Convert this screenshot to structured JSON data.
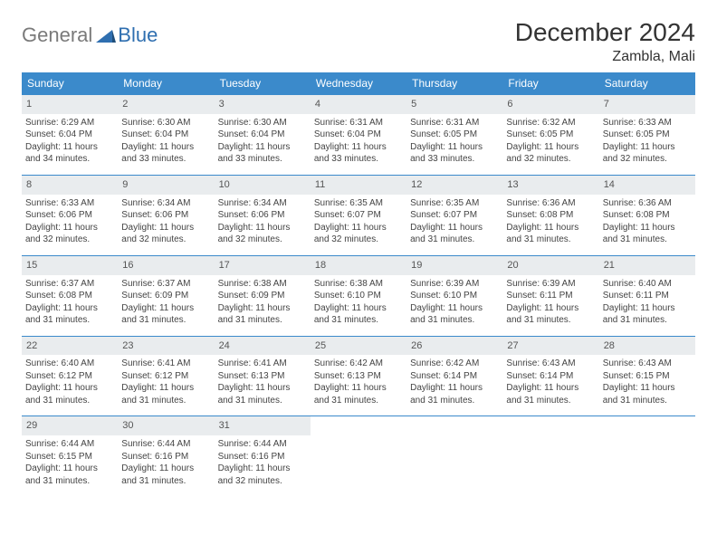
{
  "logo": {
    "part1": "General",
    "part2": "Blue"
  },
  "title": "December 2024",
  "location": "Zambla, Mali",
  "colors": {
    "header_bg": "#3b8acb",
    "header_text": "#ffffff",
    "daynum_bg": "#e9ecee",
    "border": "#3b8acb",
    "logo_gray": "#7a7a7a",
    "logo_blue": "#2f6fb0"
  },
  "dayNames": [
    "Sunday",
    "Monday",
    "Tuesday",
    "Wednesday",
    "Thursday",
    "Friday",
    "Saturday"
  ],
  "weeks": [
    [
      {
        "n": "1",
        "sr": "Sunrise: 6:29 AM",
        "ss": "Sunset: 6:04 PM",
        "dl": "Daylight: 11 hours and 34 minutes."
      },
      {
        "n": "2",
        "sr": "Sunrise: 6:30 AM",
        "ss": "Sunset: 6:04 PM",
        "dl": "Daylight: 11 hours and 33 minutes."
      },
      {
        "n": "3",
        "sr": "Sunrise: 6:30 AM",
        "ss": "Sunset: 6:04 PM",
        "dl": "Daylight: 11 hours and 33 minutes."
      },
      {
        "n": "4",
        "sr": "Sunrise: 6:31 AM",
        "ss": "Sunset: 6:04 PM",
        "dl": "Daylight: 11 hours and 33 minutes."
      },
      {
        "n": "5",
        "sr": "Sunrise: 6:31 AM",
        "ss": "Sunset: 6:05 PM",
        "dl": "Daylight: 11 hours and 33 minutes."
      },
      {
        "n": "6",
        "sr": "Sunrise: 6:32 AM",
        "ss": "Sunset: 6:05 PM",
        "dl": "Daylight: 11 hours and 32 minutes."
      },
      {
        "n": "7",
        "sr": "Sunrise: 6:33 AM",
        "ss": "Sunset: 6:05 PM",
        "dl": "Daylight: 11 hours and 32 minutes."
      }
    ],
    [
      {
        "n": "8",
        "sr": "Sunrise: 6:33 AM",
        "ss": "Sunset: 6:06 PM",
        "dl": "Daylight: 11 hours and 32 minutes."
      },
      {
        "n": "9",
        "sr": "Sunrise: 6:34 AM",
        "ss": "Sunset: 6:06 PM",
        "dl": "Daylight: 11 hours and 32 minutes."
      },
      {
        "n": "10",
        "sr": "Sunrise: 6:34 AM",
        "ss": "Sunset: 6:06 PM",
        "dl": "Daylight: 11 hours and 32 minutes."
      },
      {
        "n": "11",
        "sr": "Sunrise: 6:35 AM",
        "ss": "Sunset: 6:07 PM",
        "dl": "Daylight: 11 hours and 32 minutes."
      },
      {
        "n": "12",
        "sr": "Sunrise: 6:35 AM",
        "ss": "Sunset: 6:07 PM",
        "dl": "Daylight: 11 hours and 31 minutes."
      },
      {
        "n": "13",
        "sr": "Sunrise: 6:36 AM",
        "ss": "Sunset: 6:08 PM",
        "dl": "Daylight: 11 hours and 31 minutes."
      },
      {
        "n": "14",
        "sr": "Sunrise: 6:36 AM",
        "ss": "Sunset: 6:08 PM",
        "dl": "Daylight: 11 hours and 31 minutes."
      }
    ],
    [
      {
        "n": "15",
        "sr": "Sunrise: 6:37 AM",
        "ss": "Sunset: 6:08 PM",
        "dl": "Daylight: 11 hours and 31 minutes."
      },
      {
        "n": "16",
        "sr": "Sunrise: 6:37 AM",
        "ss": "Sunset: 6:09 PM",
        "dl": "Daylight: 11 hours and 31 minutes."
      },
      {
        "n": "17",
        "sr": "Sunrise: 6:38 AM",
        "ss": "Sunset: 6:09 PM",
        "dl": "Daylight: 11 hours and 31 minutes."
      },
      {
        "n": "18",
        "sr": "Sunrise: 6:38 AM",
        "ss": "Sunset: 6:10 PM",
        "dl": "Daylight: 11 hours and 31 minutes."
      },
      {
        "n": "19",
        "sr": "Sunrise: 6:39 AM",
        "ss": "Sunset: 6:10 PM",
        "dl": "Daylight: 11 hours and 31 minutes."
      },
      {
        "n": "20",
        "sr": "Sunrise: 6:39 AM",
        "ss": "Sunset: 6:11 PM",
        "dl": "Daylight: 11 hours and 31 minutes."
      },
      {
        "n": "21",
        "sr": "Sunrise: 6:40 AM",
        "ss": "Sunset: 6:11 PM",
        "dl": "Daylight: 11 hours and 31 minutes."
      }
    ],
    [
      {
        "n": "22",
        "sr": "Sunrise: 6:40 AM",
        "ss": "Sunset: 6:12 PM",
        "dl": "Daylight: 11 hours and 31 minutes."
      },
      {
        "n": "23",
        "sr": "Sunrise: 6:41 AM",
        "ss": "Sunset: 6:12 PM",
        "dl": "Daylight: 11 hours and 31 minutes."
      },
      {
        "n": "24",
        "sr": "Sunrise: 6:41 AM",
        "ss": "Sunset: 6:13 PM",
        "dl": "Daylight: 11 hours and 31 minutes."
      },
      {
        "n": "25",
        "sr": "Sunrise: 6:42 AM",
        "ss": "Sunset: 6:13 PM",
        "dl": "Daylight: 11 hours and 31 minutes."
      },
      {
        "n": "26",
        "sr": "Sunrise: 6:42 AM",
        "ss": "Sunset: 6:14 PM",
        "dl": "Daylight: 11 hours and 31 minutes."
      },
      {
        "n": "27",
        "sr": "Sunrise: 6:43 AM",
        "ss": "Sunset: 6:14 PM",
        "dl": "Daylight: 11 hours and 31 minutes."
      },
      {
        "n": "28",
        "sr": "Sunrise: 6:43 AM",
        "ss": "Sunset: 6:15 PM",
        "dl": "Daylight: 11 hours and 31 minutes."
      }
    ],
    [
      {
        "n": "29",
        "sr": "Sunrise: 6:44 AM",
        "ss": "Sunset: 6:15 PM",
        "dl": "Daylight: 11 hours and 31 minutes."
      },
      {
        "n": "30",
        "sr": "Sunrise: 6:44 AM",
        "ss": "Sunset: 6:16 PM",
        "dl": "Daylight: 11 hours and 31 minutes."
      },
      {
        "n": "31",
        "sr": "Sunrise: 6:44 AM",
        "ss": "Sunset: 6:16 PM",
        "dl": "Daylight: 11 hours and 32 minutes."
      },
      null,
      null,
      null,
      null
    ]
  ]
}
